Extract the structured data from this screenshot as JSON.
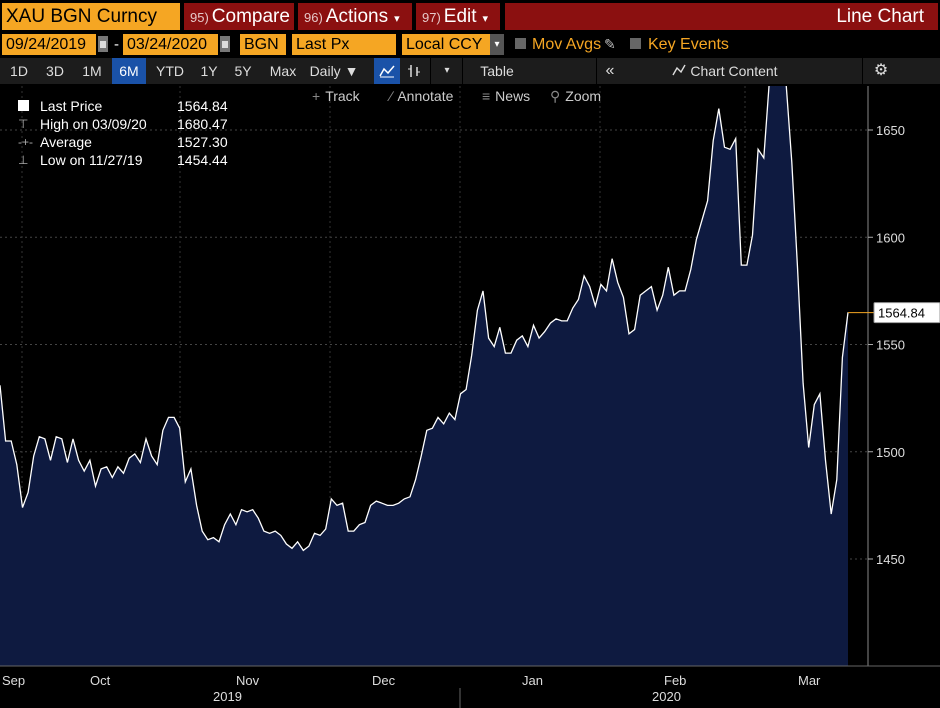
{
  "header": {
    "security": "XAU BGN Curncy",
    "compare_num": "95)",
    "compare_label": "Compare",
    "actions_num": "96)",
    "actions_label": "Actions",
    "edit_num": "97)",
    "edit_label": "Edit",
    "chart_type": "Line Chart"
  },
  "controls": {
    "start_date": "09/24/2019",
    "end_date": "03/24/2020",
    "source": "BGN",
    "field": "Last Px",
    "currency": "Local CCY",
    "mov_avgs": "Mov Avgs",
    "key_events": "Key Events"
  },
  "toolbar": {
    "ranges": [
      "1D",
      "3D",
      "1M",
      "6M",
      "YTD",
      "1Y",
      "5Y",
      "Max"
    ],
    "selected_range": "6M",
    "frequency": "Daily",
    "table": "Table",
    "chart_content": "Chart Content"
  },
  "chart_tools": {
    "track": "Track",
    "annotate": "Annotate",
    "news": "News",
    "zoom": "Zoom"
  },
  "legend": {
    "last_price_label": "Last Price",
    "last_price_value": "1564.84",
    "high_label": "High on 03/09/20",
    "high_value": "1680.47",
    "average_label": "Average",
    "average_value": "1527.30",
    "low_label": "Low on 11/27/19",
    "low_value": "1454.44"
  },
  "colors": {
    "accent_orange": "#f5a623",
    "header_red": "#8b1010",
    "area_fill": "#0e1a40",
    "line": "#ffffff",
    "selected_blue": "#1a52a8"
  },
  "chart_data": {
    "type": "area",
    "title": "",
    "xlabel": "",
    "ylabel": "",
    "ylim": [
      1435,
      1705
    ],
    "yticks": [
      1450,
      1500,
      1550,
      1600,
      1650,
      1700
    ],
    "month_labels": [
      "Sep",
      "Oct",
      "Nov",
      "Dec",
      "Jan",
      "Feb",
      "Mar"
    ],
    "year_labels": [
      "2019",
      "2020"
    ],
    "last_value_label": "1564.84",
    "grid": true,
    "series": [
      {
        "values": [
          1531,
          1505,
          1505,
          1494,
          1474,
          1481,
          1498,
          1507,
          1506,
          1496,
          1507,
          1506,
          1495,
          1506,
          1496,
          1491,
          1496,
          1484,
          1492,
          1493,
          1488,
          1493,
          1490,
          1497,
          1499,
          1495,
          1506,
          1498,
          1494,
          1510,
          1516,
          1516,
          1511,
          1486,
          1492,
          1475,
          1463,
          1459,
          1460,
          1458,
          1466,
          1471,
          1466,
          1473,
          1472,
          1473,
          1469,
          1463,
          1462,
          1463,
          1461,
          1457,
          1455,
          1458,
          1454,
          1456,
          1462,
          1461,
          1464,
          1478,
          1475,
          1476,
          1463,
          1463,
          1466,
          1467,
          1475,
          1477,
          1476,
          1475,
          1475,
          1476,
          1478,
          1479,
          1487,
          1498,
          1510,
          1511,
          1516,
          1513,
          1518,
          1515,
          1527,
          1529,
          1545,
          1566,
          1575,
          1553,
          1549,
          1558,
          1546,
          1546,
          1552,
          1554,
          1549,
          1559,
          1553,
          1556,
          1560,
          1562,
          1561,
          1561,
          1567,
          1571,
          1582,
          1577,
          1568,
          1578,
          1575,
          1590,
          1579,
          1572,
          1555,
          1557,
          1573,
          1575,
          1577,
          1566,
          1573,
          1586,
          1573,
          1575,
          1575,
          1585,
          1599,
          1608,
          1617,
          1645,
          1660,
          1642,
          1641,
          1646,
          1587,
          1587,
          1601,
          1641,
          1637,
          1673,
          1671,
          1680,
          1671,
          1635,
          1586,
          1532,
          1502,
          1522,
          1527,
          1496,
          1471,
          1487,
          1544,
          1565
        ]
      }
    ]
  }
}
